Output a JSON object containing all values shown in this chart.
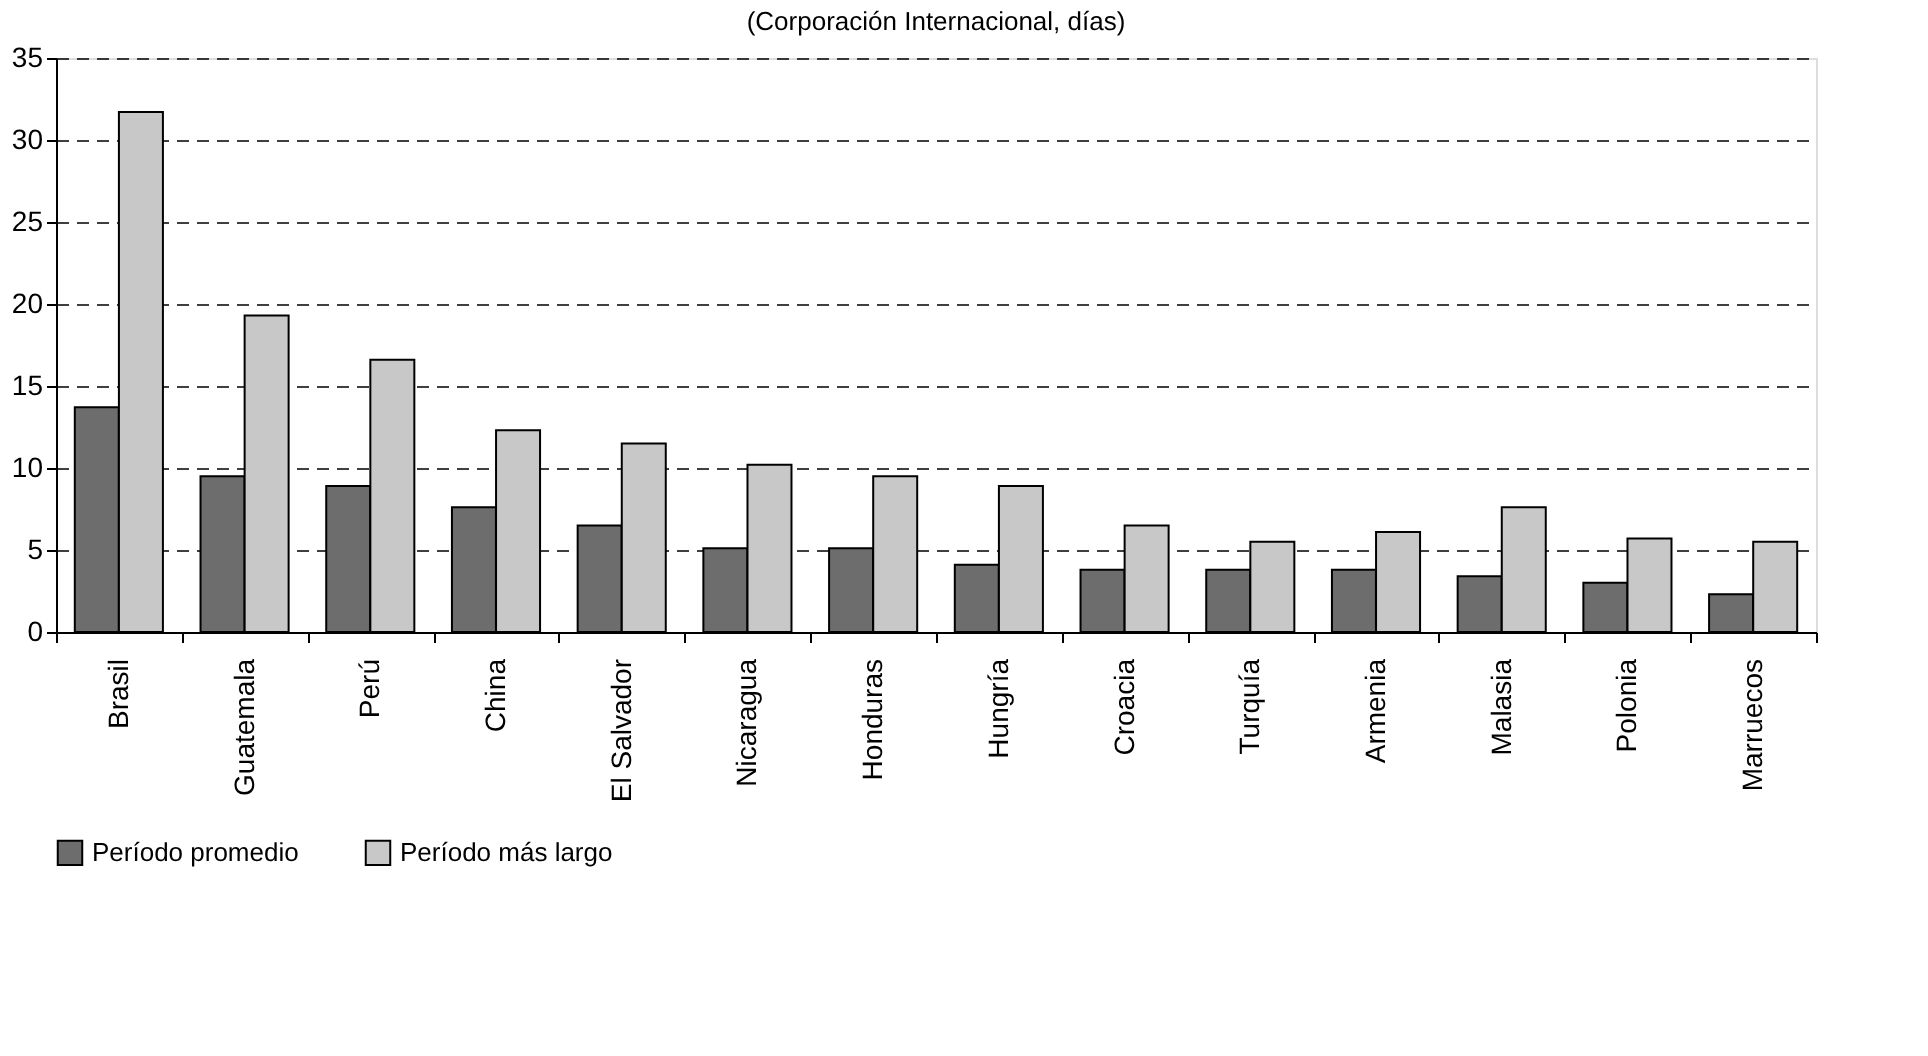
{
  "chart_data": {
    "type": "bar",
    "subtitle": "(Corporación Internacional, días)",
    "categories": [
      "Brasil",
      "Guatemala",
      "Perú",
      "China",
      "El Salvador",
      "Nicaragua",
      "Honduras",
      "Hungría",
      "Croacia",
      "Turquía",
      "Armenia",
      "Malasia",
      "Polonia",
      "Marruecos"
    ],
    "series": [
      {
        "name": "Período promedio",
        "color": "#6d6d6d",
        "values": [
          13.7,
          9.5,
          8.9,
          7.6,
          6.5,
          5.1,
          5.1,
          4.1,
          3.8,
          3.8,
          3.8,
          3.4,
          3.0,
          2.3
        ]
      },
      {
        "name": "Período más largo",
        "color": "#c8c8c8",
        "values": [
          31.7,
          19.3,
          16.6,
          12.3,
          11.5,
          10.2,
          9.5,
          8.9,
          6.5,
          5.5,
          6.1,
          7.6,
          5.7,
          5.5
        ]
      }
    ],
    "ylim": [
      0,
      35
    ],
    "yticks": [
      0,
      5,
      10,
      15,
      20,
      25,
      30,
      35
    ],
    "grid": "y",
    "legend": "bottom"
  }
}
